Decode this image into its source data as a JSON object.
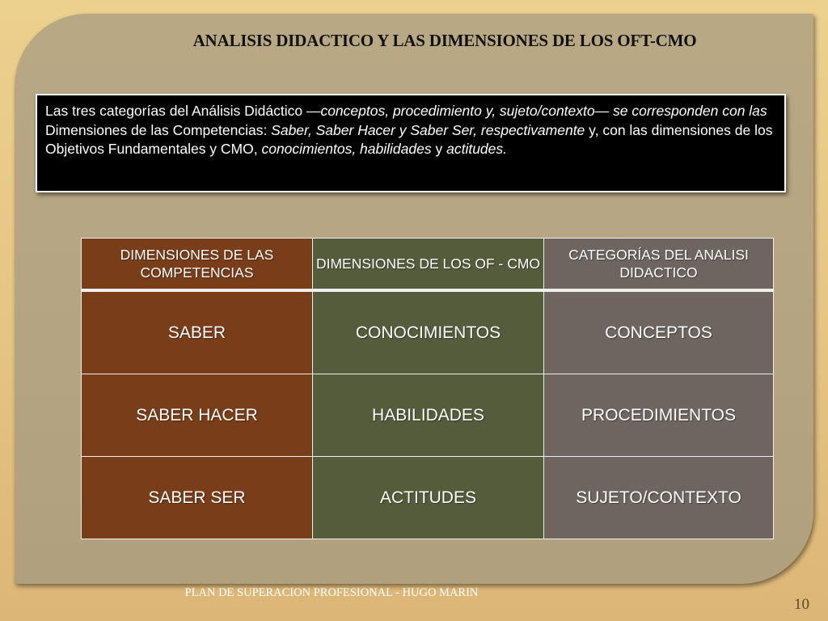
{
  "slide": {
    "title": "ANALISIS DIDACTICO Y LAS DIMENSIONES DE LOS OFT-CMO",
    "textbox": {
      "p1": "Las tres categorías del Análisis Didáctico —",
      "p2": "conceptos, procedimiento y, sujeto/contexto— se corresponden con las",
      "p3": " Dimensiones de las Competencias: ",
      "p4": "Saber, Saber Hacer y Saber Ser, respectivamente",
      "p5": " y, con las dimensiones de los Objetivos Fundamentales y CMO, ",
      "p6": "conocimientos, habilidades",
      "p7": " y ",
      "p8": "actitudes."
    },
    "table": {
      "headers": [
        "DIMENSIONES DE LAS COMPETENCIAS",
        "DIMENSIONES DE LOS OF - CMO",
        "CATEGORÍAS DEL ANALISI DIDACTICO"
      ],
      "rows": [
        [
          "SABER",
          "CONOCIMIENTOS",
          "CONCEPTOS"
        ],
        [
          "SABER HACER",
          "HABILIDADES",
          "PROCEDIMIENTOS"
        ],
        [
          "SABER SER",
          "ACTITUDES",
          "SUJETO/CONTEXTO"
        ]
      ]
    },
    "footer": "PLAN DE SUPERACION PROFESIONAL - HUGO MARIN",
    "page_number": "10",
    "colors": {
      "column1": "#7a3d1a",
      "column2": "#555c3b",
      "column3": "#6e6460",
      "panel": "#b5a583",
      "background": "#e6c585"
    }
  }
}
